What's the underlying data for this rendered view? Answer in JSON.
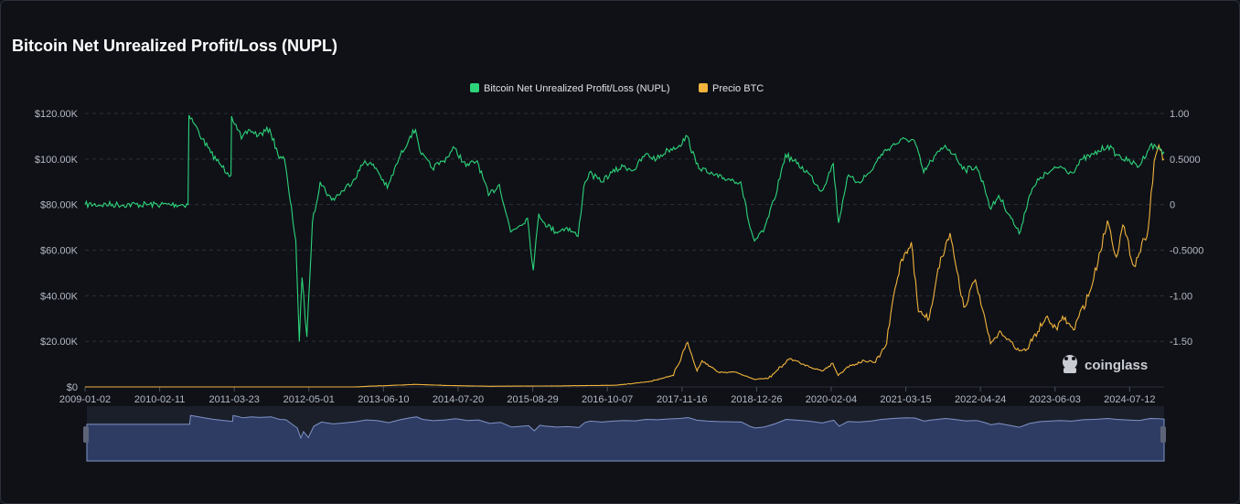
{
  "title": "Bitcoin Net Unrealized Profit/Loss (NUPL)",
  "watermark": "coinglass",
  "colors": {
    "nupl": "#2ed47a",
    "price": "#f2b43c",
    "grid": "#2b303b",
    "navigator_fill": "#2e3c64",
    "navigator_line": "#7f93c6"
  },
  "chart_data": {
    "type": "line",
    "title": "Bitcoin Net Unrealized Profit/Loss (NUPL)",
    "legend_position": "top-center",
    "grid": true,
    "x_tick_labels": [
      "2009-01-02",
      "2010-02-11",
      "2011-03-23",
      "2012-05-01",
      "2013-06-10",
      "2014-07-20",
      "2015-08-29",
      "2016-10-07",
      "2017-11-16",
      "2018-12-26",
      "2020-02-04",
      "2021-03-15",
      "2022-04-24",
      "2023-06-03",
      "2024-07-12"
    ],
    "x_range": [
      "2009-01-02",
      "2025-01-15"
    ],
    "y_left": {
      "ylim": [
        0,
        120000
      ],
      "tick_labels": [
        "$0",
        "$20.00K",
        "$40.00K",
        "$60.00K",
        "$80.00K",
        "$100.00K",
        "$120.00K"
      ]
    },
    "y_right": {
      "ylim": [
        -2,
        1
      ],
      "tick_labels": [
        "-1.50",
        "-1.00",
        "-0.5000",
        "0",
        "0.5000",
        "1.00"
      ]
    },
    "series": [
      {
        "name": "Bitcoin Net Unrealized Profit/Loss (NUPL)",
        "axis": "right",
        "points": [
          [
            "2009-01-02",
            0
          ],
          [
            "2010-07-15",
            0
          ],
          [
            "2010-07-20",
            0.98
          ],
          [
            "2010-08-20",
            0.88
          ],
          [
            "2010-10-01",
            0.72
          ],
          [
            "2010-11-15",
            0.57
          ],
          [
            "2011-01-01",
            0.45
          ],
          [
            "2011-02-15",
            0.35
          ],
          [
            "2011-03-05",
            0.32
          ],
          [
            "2011-03-08",
            0.97
          ],
          [
            "2011-04-01",
            0.88
          ],
          [
            "2011-05-01",
            0.72
          ],
          [
            "2011-06-15",
            0.82
          ],
          [
            "2011-08-01",
            0.76
          ],
          [
            "2011-10-01",
            0.83
          ],
          [
            "2011-11-15",
            0.55
          ],
          [
            "2011-12-20",
            0.5
          ],
          [
            "2012-01-20",
            0.05
          ],
          [
            "2012-02-20",
            -0.4
          ],
          [
            "2012-03-10",
            -1.5
          ],
          [
            "2012-03-25",
            -0.8
          ],
          [
            "2012-04-20",
            -1.45
          ],
          [
            "2012-05-20",
            -0.2
          ],
          [
            "2012-07-01",
            0.25
          ],
          [
            "2012-09-01",
            0.05
          ],
          [
            "2012-11-01",
            0.15
          ],
          [
            "2013-01-01",
            0.28
          ],
          [
            "2013-03-01",
            0.48
          ],
          [
            "2013-05-01",
            0.4
          ],
          [
            "2013-07-01",
            0.18
          ],
          [
            "2013-09-01",
            0.5
          ],
          [
            "2013-11-01",
            0.75
          ],
          [
            "2013-12-01",
            0.82
          ],
          [
            "2014-01-01",
            0.55
          ],
          [
            "2014-03-01",
            0.4
          ],
          [
            "2014-05-01",
            0.48
          ],
          [
            "2014-07-01",
            0.62
          ],
          [
            "2014-09-01",
            0.42
          ],
          [
            "2014-11-01",
            0.48
          ],
          [
            "2015-01-01",
            0.1
          ],
          [
            "2015-03-01",
            0.22
          ],
          [
            "2015-05-01",
            -0.3
          ],
          [
            "2015-08-01",
            -0.15
          ],
          [
            "2015-09-01",
            -0.72
          ],
          [
            "2015-10-01",
            -0.1
          ],
          [
            "2015-11-01",
            -0.2
          ],
          [
            "2016-01-01",
            -0.3
          ],
          [
            "2016-03-01",
            -0.25
          ],
          [
            "2016-05-01",
            -0.35
          ],
          [
            "2016-06-01",
            0.2
          ],
          [
            "2016-07-01",
            0.35
          ],
          [
            "2016-09-01",
            0.25
          ],
          [
            "2016-11-01",
            0.35
          ],
          [
            "2017-01-01",
            0.42
          ],
          [
            "2017-03-01",
            0.38
          ],
          [
            "2017-05-01",
            0.55
          ],
          [
            "2017-07-01",
            0.5
          ],
          [
            "2017-09-01",
            0.6
          ],
          [
            "2017-11-01",
            0.65
          ],
          [
            "2017-12-15",
            0.75
          ],
          [
            "2018-02-01",
            0.45
          ],
          [
            "2018-04-01",
            0.35
          ],
          [
            "2018-06-01",
            0.3
          ],
          [
            "2018-08-01",
            0.28
          ],
          [
            "2018-10-01",
            0.25
          ],
          [
            "2018-11-20",
            -0.25
          ],
          [
            "2018-12-15",
            -0.4
          ],
          [
            "2019-02-01",
            -0.3
          ],
          [
            "2019-04-01",
            0.05
          ],
          [
            "2019-06-01",
            0.55
          ],
          [
            "2019-08-01",
            0.45
          ],
          [
            "2019-10-01",
            0.35
          ],
          [
            "2019-12-15",
            0.15
          ],
          [
            "2020-02-15",
            0.45
          ],
          [
            "2020-03-15",
            -0.2
          ],
          [
            "2020-05-01",
            0.3
          ],
          [
            "2020-07-01",
            0.25
          ],
          [
            "2020-09-01",
            0.35
          ],
          [
            "2020-11-01",
            0.55
          ],
          [
            "2021-01-01",
            0.65
          ],
          [
            "2021-03-15",
            0.72
          ],
          [
            "2021-05-01",
            0.7
          ],
          [
            "2021-06-20",
            0.35
          ],
          [
            "2021-08-01",
            0.48
          ],
          [
            "2021-10-15",
            0.65
          ],
          [
            "2021-12-01",
            0.55
          ],
          [
            "2022-02-01",
            0.38
          ],
          [
            "2022-04-01",
            0.42
          ],
          [
            "2022-05-15",
            0.2
          ],
          [
            "2022-06-20",
            -0.05
          ],
          [
            "2022-08-01",
            0.1
          ],
          [
            "2022-10-01",
            -0.12
          ],
          [
            "2022-11-20",
            -0.32
          ],
          [
            "2023-01-15",
            0.1
          ],
          [
            "2023-03-15",
            0.3
          ],
          [
            "2023-05-01",
            0.35
          ],
          [
            "2023-07-01",
            0.42
          ],
          [
            "2023-09-01",
            0.35
          ],
          [
            "2023-11-01",
            0.5
          ],
          [
            "2024-01-01",
            0.55
          ],
          [
            "2024-03-15",
            0.65
          ],
          [
            "2024-05-01",
            0.55
          ],
          [
            "2024-07-01",
            0.48
          ],
          [
            "2024-09-01",
            0.42
          ],
          [
            "2024-11-01",
            0.65
          ],
          [
            "2024-12-15",
            0.62
          ],
          [
            "2025-01-15",
            0.58
          ]
        ]
      },
      {
        "name": "Precio BTC",
        "axis": "left",
        "points": [
          [
            "2009-01-02",
            0
          ],
          [
            "2013-01-01",
            13
          ],
          [
            "2013-12-01",
            1100
          ],
          [
            "2014-06-01",
            600
          ],
          [
            "2015-01-01",
            300
          ],
          [
            "2016-01-01",
            430
          ],
          [
            "2016-12-01",
            750
          ],
          [
            "2017-06-01",
            2500
          ],
          [
            "2017-10-01",
            5000
          ],
          [
            "2017-12-17",
            19500
          ],
          [
            "2018-02-06",
            7000
          ],
          [
            "2018-03-05",
            11500
          ],
          [
            "2018-06-01",
            6500
          ],
          [
            "2018-09-01",
            6500
          ],
          [
            "2018-12-15",
            3300
          ],
          [
            "2019-03-01",
            3800
          ],
          [
            "2019-06-26",
            12500
          ],
          [
            "2019-09-01",
            10000
          ],
          [
            "2019-12-15",
            7000
          ],
          [
            "2020-02-13",
            10300
          ],
          [
            "2020-03-13",
            5000
          ],
          [
            "2020-05-01",
            8800
          ],
          [
            "2020-08-01",
            11500
          ],
          [
            "2020-10-01",
            10700
          ],
          [
            "2020-12-01",
            19000
          ],
          [
            "2021-01-08",
            40000
          ],
          [
            "2021-02-20",
            56000
          ],
          [
            "2021-04-14",
            63500
          ],
          [
            "2021-05-23",
            33000
          ],
          [
            "2021-07-20",
            30000
          ],
          [
            "2021-09-06",
            52000
          ],
          [
            "2021-11-10",
            67500
          ],
          [
            "2022-01-24",
            35000
          ],
          [
            "2022-03-28",
            47000
          ],
          [
            "2022-06-18",
            19000
          ],
          [
            "2022-08-14",
            24000
          ],
          [
            "2022-11-21",
            15800
          ],
          [
            "2023-01-01",
            16500
          ],
          [
            "2023-04-14",
            30500
          ],
          [
            "2023-06-15",
            25000
          ],
          [
            "2023-07-14",
            31000
          ],
          [
            "2023-09-11",
            25000
          ],
          [
            "2023-12-15",
            43000
          ],
          [
            "2024-03-14",
            73000
          ],
          [
            "2024-05-01",
            57000
          ],
          [
            "2024-06-05",
            71000
          ],
          [
            "2024-08-05",
            53000
          ],
          [
            "2024-09-30",
            65000
          ],
          [
            "2024-10-20",
            69000
          ],
          [
            "2024-11-22",
            99000
          ],
          [
            "2024-12-17",
            106000
          ],
          [
            "2025-01-15",
            100000
          ]
        ]
      }
    ]
  }
}
